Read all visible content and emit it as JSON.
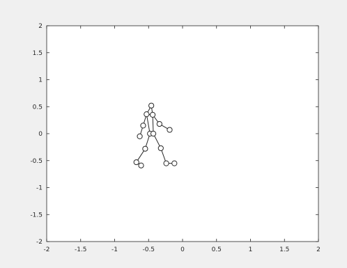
{
  "chart_data": {
    "type": "scatter",
    "title": "",
    "xlabel": "",
    "ylabel": "",
    "xlim": [
      -2,
      2
    ],
    "ylim": [
      -2,
      2
    ],
    "xticks": [
      -2,
      -1.5,
      -1,
      -0.5,
      0,
      0.5,
      1,
      1.5,
      2
    ],
    "yticks": [
      -2,
      -1.5,
      -1,
      -0.5,
      0,
      0.5,
      1,
      1.5,
      2
    ],
    "xtick_labels": [
      "-2",
      "-1.5",
      "-1",
      "-0.5",
      "0",
      "0.5",
      "1",
      "1.5",
      "2"
    ],
    "ytick_labels": [
      "-2",
      "-1.5",
      "-1",
      "-0.5",
      "0",
      "0.5",
      "1",
      "1.5",
      "2"
    ],
    "grid": false,
    "marker": "open-circle",
    "colors": {
      "marker_edge": "#262626",
      "line": "#262626",
      "axes_background": "#ffffff",
      "figure_background": "#f0f0f0"
    },
    "points": [
      {
        "x": -0.46,
        "y": 0.52
      },
      {
        "x": -0.53,
        "y": 0.36
      },
      {
        "x": -0.44,
        "y": 0.35
      },
      {
        "x": -0.58,
        "y": 0.15
      },
      {
        "x": -0.34,
        "y": 0.18
      },
      {
        "x": -0.63,
        "y": -0.05
      },
      {
        "x": -0.19,
        "y": 0.07
      },
      {
        "x": -0.48,
        "y": 0.0
      },
      {
        "x": -0.43,
        "y": 0.0
      },
      {
        "x": -0.55,
        "y": -0.28
      },
      {
        "x": -0.32,
        "y": -0.27
      },
      {
        "x": -0.68,
        "y": -0.53
      },
      {
        "x": -0.61,
        "y": -0.59
      },
      {
        "x": -0.24,
        "y": -0.55
      },
      {
        "x": -0.12,
        "y": -0.55
      }
    ],
    "segments": [
      [
        0,
        1
      ],
      [
        0,
        2
      ],
      [
        1,
        2
      ],
      [
        1,
        3
      ],
      [
        3,
        5
      ],
      [
        2,
        4
      ],
      [
        4,
        6
      ],
      [
        1,
        7
      ],
      [
        2,
        8
      ],
      [
        7,
        8
      ],
      [
        7,
        9
      ],
      [
        9,
        11
      ],
      [
        11,
        12
      ],
      [
        8,
        10
      ],
      [
        10,
        13
      ],
      [
        13,
        14
      ]
    ]
  }
}
